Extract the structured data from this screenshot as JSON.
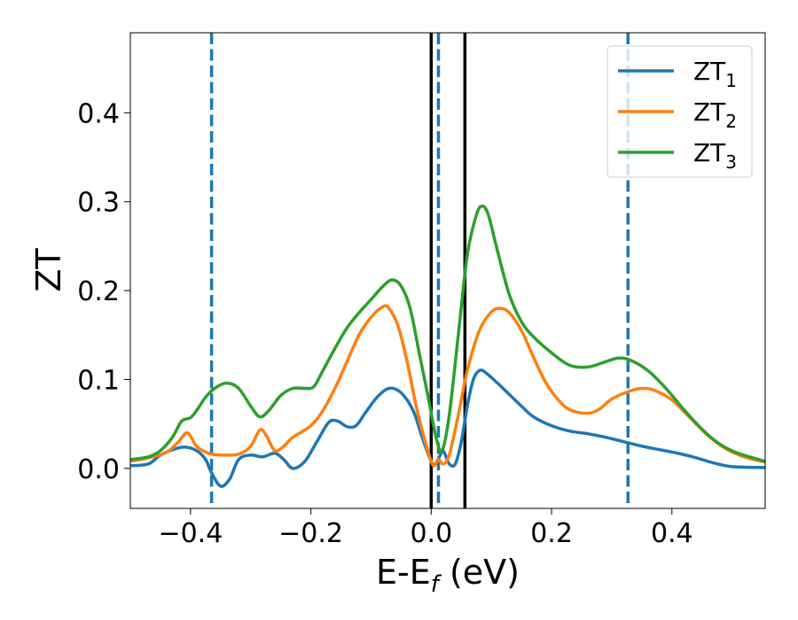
{
  "chart_data": {
    "type": "line",
    "xlabel": "E-E",
    "xlabel_subscript": "f",
    "xlabel_unit": " (eV)",
    "ylabel": "ZT",
    "xlim": [
      -0.5,
      0.555
    ],
    "ylim": [
      -0.045,
      0.49
    ],
    "grid": false,
    "legend_position": "top-right",
    "x_ticks": [
      -0.4,
      -0.2,
      0.0,
      0.2,
      0.4
    ],
    "x_tick_labels": [
      "−0.4",
      "−0.2",
      "0.0",
      "0.2",
      "0.4"
    ],
    "y_ticks": [
      0.0,
      0.1,
      0.2,
      0.3,
      0.4
    ],
    "y_tick_labels": [
      "0.0",
      "0.1",
      "0.2",
      "0.3",
      "0.4"
    ],
    "series": [
      {
        "name": "ZT",
        "sub": "1",
        "color": "#1f77b4",
        "points": [
          [
            -0.5,
            0.003
          ],
          [
            -0.47,
            0.005
          ],
          [
            -0.45,
            0.015
          ],
          [
            -0.43,
            0.021
          ],
          [
            -0.41,
            0.024
          ],
          [
            -0.39,
            0.02
          ],
          [
            -0.375,
            0.01
          ],
          [
            -0.365,
            -0.005
          ],
          [
            -0.35,
            -0.02
          ],
          [
            -0.335,
            -0.012
          ],
          [
            -0.32,
            0.01
          ],
          [
            -0.3,
            0.015
          ],
          [
            -0.28,
            0.013
          ],
          [
            -0.26,
            0.017
          ],
          [
            -0.245,
            0.01
          ],
          [
            -0.23,
            0.0
          ],
          [
            -0.21,
            0.008
          ],
          [
            -0.19,
            0.03
          ],
          [
            -0.17,
            0.052
          ],
          [
            -0.155,
            0.053
          ],
          [
            -0.14,
            0.047
          ],
          [
            -0.125,
            0.048
          ],
          [
            -0.11,
            0.062
          ],
          [
            -0.09,
            0.08
          ],
          [
            -0.07,
            0.09
          ],
          [
            -0.05,
            0.085
          ],
          [
            -0.03,
            0.065
          ],
          [
            -0.015,
            0.035
          ],
          [
            0.0,
            0.008
          ],
          [
            0.007,
            0.005
          ],
          [
            0.015,
            0.015
          ],
          [
            0.02,
            0.02
          ],
          [
            0.03,
            0.005
          ],
          [
            0.04,
            0.005
          ],
          [
            0.05,
            0.03
          ],
          [
            0.06,
            0.07
          ],
          [
            0.07,
            0.1
          ],
          [
            0.08,
            0.11
          ],
          [
            0.09,
            0.108
          ],
          [
            0.11,
            0.096
          ],
          [
            0.13,
            0.083
          ],
          [
            0.15,
            0.07
          ],
          [
            0.17,
            0.058
          ],
          [
            0.2,
            0.048
          ],
          [
            0.23,
            0.042
          ],
          [
            0.26,
            0.039
          ],
          [
            0.29,
            0.035
          ],
          [
            0.32,
            0.03
          ],
          [
            0.35,
            0.025
          ],
          [
            0.38,
            0.021
          ],
          [
            0.41,
            0.017
          ],
          [
            0.44,
            0.012
          ],
          [
            0.47,
            0.006
          ],
          [
            0.5,
            0.002
          ],
          [
            0.555,
            0.001
          ]
        ]
      },
      {
        "name": "ZT",
        "sub": "2",
        "color": "#ff7f0e",
        "points": [
          [
            -0.5,
            0.008
          ],
          [
            -0.47,
            0.012
          ],
          [
            -0.44,
            0.018
          ],
          [
            -0.42,
            0.03
          ],
          [
            -0.405,
            0.04
          ],
          [
            -0.39,
            0.025
          ],
          [
            -0.37,
            0.017
          ],
          [
            -0.35,
            0.015
          ],
          [
            -0.32,
            0.016
          ],
          [
            -0.3,
            0.025
          ],
          [
            -0.285,
            0.043
          ],
          [
            -0.275,
            0.038
          ],
          [
            -0.26,
            0.02
          ],
          [
            -0.245,
            0.025
          ],
          [
            -0.23,
            0.035
          ],
          [
            -0.2,
            0.048
          ],
          [
            -0.18,
            0.065
          ],
          [
            -0.16,
            0.09
          ],
          [
            -0.14,
            0.12
          ],
          [
            -0.12,
            0.15
          ],
          [
            -0.1,
            0.17
          ],
          [
            -0.08,
            0.182
          ],
          [
            -0.07,
            0.18
          ],
          [
            -0.055,
            0.16
          ],
          [
            -0.04,
            0.12
          ],
          [
            -0.025,
            0.07
          ],
          [
            -0.01,
            0.03
          ],
          [
            0.0,
            0.008
          ],
          [
            0.005,
            0.003
          ],
          [
            0.012,
            0.01
          ],
          [
            0.02,
            0.005
          ],
          [
            0.03,
            0.015
          ],
          [
            0.045,
            0.06
          ],
          [
            0.06,
            0.11
          ],
          [
            0.08,
            0.155
          ],
          [
            0.1,
            0.176
          ],
          [
            0.115,
            0.18
          ],
          [
            0.13,
            0.175
          ],
          [
            0.15,
            0.155
          ],
          [
            0.17,
            0.125
          ],
          [
            0.19,
            0.097
          ],
          [
            0.21,
            0.078
          ],
          [
            0.23,
            0.066
          ],
          [
            0.26,
            0.062
          ],
          [
            0.28,
            0.067
          ],
          [
            0.3,
            0.078
          ],
          [
            0.33,
            0.087
          ],
          [
            0.35,
            0.09
          ],
          [
            0.37,
            0.088
          ],
          [
            0.4,
            0.077
          ],
          [
            0.43,
            0.057
          ],
          [
            0.46,
            0.037
          ],
          [
            0.49,
            0.022
          ],
          [
            0.52,
            0.013
          ],
          [
            0.555,
            0.007
          ]
        ]
      },
      {
        "name": "ZT",
        "sub": "3",
        "color": "#2ca02c",
        "points": [
          [
            -0.5,
            0.01
          ],
          [
            -0.47,
            0.013
          ],
          [
            -0.45,
            0.02
          ],
          [
            -0.43,
            0.035
          ],
          [
            -0.415,
            0.053
          ],
          [
            -0.4,
            0.057
          ],
          [
            -0.39,
            0.065
          ],
          [
            -0.375,
            0.08
          ],
          [
            -0.36,
            0.09
          ],
          [
            -0.34,
            0.096
          ],
          [
            -0.32,
            0.09
          ],
          [
            -0.3,
            0.07
          ],
          [
            -0.285,
            0.058
          ],
          [
            -0.27,
            0.065
          ],
          [
            -0.25,
            0.082
          ],
          [
            -0.23,
            0.09
          ],
          [
            -0.21,
            0.09
          ],
          [
            -0.195,
            0.092
          ],
          [
            -0.18,
            0.11
          ],
          [
            -0.16,
            0.135
          ],
          [
            -0.14,
            0.158
          ],
          [
            -0.12,
            0.175
          ],
          [
            -0.1,
            0.19
          ],
          [
            -0.08,
            0.205
          ],
          [
            -0.065,
            0.212
          ],
          [
            -0.05,
            0.205
          ],
          [
            -0.035,
            0.18
          ],
          [
            -0.02,
            0.13
          ],
          [
            -0.005,
            0.08
          ],
          [
            0.008,
            0.035
          ],
          [
            0.018,
            0.02
          ],
          [
            0.03,
            0.06
          ],
          [
            0.045,
            0.15
          ],
          [
            0.06,
            0.24
          ],
          [
            0.075,
            0.285
          ],
          [
            0.085,
            0.295
          ],
          [
            0.095,
            0.285
          ],
          [
            0.11,
            0.245
          ],
          [
            0.13,
            0.195
          ],
          [
            0.15,
            0.165
          ],
          [
            0.17,
            0.148
          ],
          [
            0.2,
            0.13
          ],
          [
            0.23,
            0.116
          ],
          [
            0.26,
            0.114
          ],
          [
            0.29,
            0.12
          ],
          [
            0.31,
            0.124
          ],
          [
            0.33,
            0.122
          ],
          [
            0.36,
            0.11
          ],
          [
            0.39,
            0.09
          ],
          [
            0.42,
            0.066
          ],
          [
            0.45,
            0.044
          ],
          [
            0.48,
            0.027
          ],
          [
            0.51,
            0.017
          ],
          [
            0.555,
            0.008
          ]
        ]
      }
    ],
    "vlines": [
      {
        "x": -0.365,
        "color": "#1f77b4",
        "style": "dashed"
      },
      {
        "x": 0.012,
        "color": "#1f77b4",
        "style": "dashed"
      },
      {
        "x": 0.327,
        "color": "#1f77b4",
        "style": "dashed"
      },
      {
        "x": 0.0,
        "color": "#000000",
        "style": "solid"
      },
      {
        "x": 0.056,
        "color": "#000000",
        "style": "solid"
      }
    ]
  }
}
